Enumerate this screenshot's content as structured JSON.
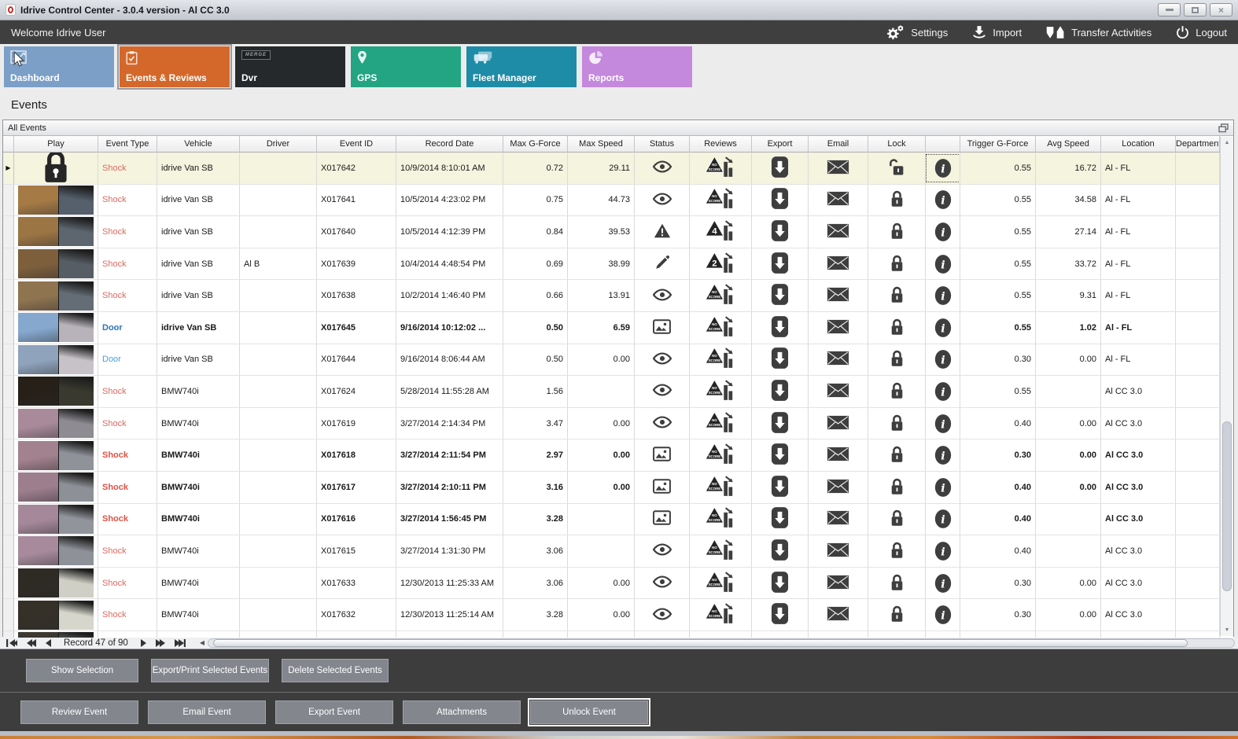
{
  "window": {
    "title": "Idrive Control Center - 3.0.4 version - Al CC 3.0",
    "controls": [
      "minimize",
      "maximize",
      "close"
    ]
  },
  "menubar": {
    "welcome": "Welcome Idrive User",
    "items": [
      {
        "label": "Settings",
        "icon": "gears-icon"
      },
      {
        "label": "Import",
        "icon": "import-arrow-icon"
      },
      {
        "label": "Transfer Activities",
        "icon": "transfer-arrows-icon"
      },
      {
        "label": "Logout",
        "icon": "power-icon"
      }
    ]
  },
  "tabs": [
    {
      "label": "Dashboard",
      "icon": "dashboard-chart-icon",
      "color": "#7b9fc7",
      "active": false
    },
    {
      "label": "Events & Reviews",
      "icon": "clipboard-check-icon",
      "color": "#d4682b",
      "active": true
    },
    {
      "label": "Dvr",
      "icon": "merge-logo-icon",
      "color": "#26292b",
      "active": false
    },
    {
      "label": "GPS",
      "icon": "map-pin-icon",
      "color": "#23a483",
      "active": false
    },
    {
      "label": "Fleet Manager",
      "icon": "trucks-icon",
      "color": "#1e8ca6",
      "active": false
    },
    {
      "label": "Reports",
      "icon": "pie-chart-icon",
      "color": "#c488dd",
      "active": false
    }
  ],
  "page": {
    "title": "Events"
  },
  "panel": {
    "title": "All Events"
  },
  "table": {
    "columns": [
      "",
      "Play",
      "Event Type",
      "Vehicle",
      "Driver",
      "Event ID",
      "Record Date",
      "Max G-Force",
      "Max Speed",
      "Status",
      "Reviews",
      "Export",
      "Email",
      "Lock",
      "",
      "Trigger G-Force",
      "Avg Speed",
      "Location",
      "Department"
    ],
    "rows": [
      {
        "play": "lock",
        "type": "Shock",
        "style": "shock",
        "vehicle": "idrive Van SB",
        "driver": "",
        "id": "X017642",
        "date": "10/9/2014 8:10:01 AM",
        "max_g": "0.72",
        "max_speed": "29.11",
        "status": "eye",
        "review": "NO SCORE",
        "lock": "unlocked",
        "trigger_g": "0.55",
        "avg_speed": "16.72",
        "location": "Al - FL",
        "department": "",
        "bold": false,
        "selected": true,
        "info_focus": true,
        "thumb": []
      },
      {
        "play": "thumb",
        "type": "Shock",
        "style": "shock",
        "vehicle": "idrive Van SB",
        "driver": "",
        "id": "X017641",
        "date": "10/5/2014 4:23:02 PM",
        "max_g": "0.75",
        "max_speed": "44.73",
        "status": "eye",
        "review": "NO SCORE",
        "lock": "locked",
        "trigger_g": "0.55",
        "avg_speed": "34.58",
        "location": "Al - FL",
        "department": "",
        "bold": false,
        "selected": false,
        "info_focus": false,
        "thumb": [
          "#a57a45",
          "#55606c"
        ]
      },
      {
        "play": "thumb",
        "type": "Shock",
        "style": "shock",
        "vehicle": "idrive Van SB",
        "driver": "",
        "id": "X017640",
        "date": "10/5/2014 4:12:39 PM",
        "max_g": "0.84",
        "max_speed": "39.53",
        "status": "warning",
        "review": "4",
        "lock": "locked",
        "trigger_g": "0.55",
        "avg_speed": "27.14",
        "location": "Al - FL",
        "department": "",
        "bold": false,
        "selected": false,
        "info_focus": false,
        "thumb": [
          "#9c7544",
          "#5d666f"
        ]
      },
      {
        "play": "thumb",
        "type": "Shock",
        "style": "shock",
        "vehicle": "idrive Van SB",
        "driver": "Al B",
        "id": "X017639",
        "date": "10/4/2014 4:48:54 PM",
        "max_g": "0.69",
        "max_speed": "38.99",
        "status": "pencil",
        "review": "2",
        "lock": "locked",
        "trigger_g": "0.55",
        "avg_speed": "33.72",
        "location": "Al - FL",
        "department": "",
        "bold": false,
        "selected": false,
        "info_focus": false,
        "thumb": [
          "#7d5f3c",
          "#565d64"
        ]
      },
      {
        "play": "thumb",
        "type": "Shock",
        "style": "shock",
        "vehicle": "idrive Van SB",
        "driver": "",
        "id": "X017638",
        "date": "10/2/2014 1:46:40 PM",
        "max_g": "0.66",
        "max_speed": "13.91",
        "status": "eye",
        "review": "NO SCORE",
        "lock": "locked",
        "trigger_g": "0.55",
        "avg_speed": "9.31",
        "location": "Al - FL",
        "department": "",
        "bold": false,
        "selected": false,
        "info_focus": false,
        "thumb": [
          "#8f7450",
          "#646d76"
        ]
      },
      {
        "play": "thumb",
        "type": "Door",
        "style": "door",
        "vehicle": "idrive Van SB",
        "driver": "",
        "id": "X017645",
        "date": "9/16/2014 10:12:02 ...",
        "max_g": "0.50",
        "max_speed": "6.59",
        "status": "picture",
        "review": "NO SCORE",
        "lock": "locked",
        "trigger_g": "0.55",
        "avg_speed": "1.02",
        "location": "Al - FL",
        "department": "",
        "bold": true,
        "selected": false,
        "info_focus": false,
        "thumb": [
          "#86a8cf",
          "#b8b2ba"
        ]
      },
      {
        "play": "thumb",
        "type": "Door",
        "style": "door",
        "vehicle": "idrive Van SB",
        "driver": "",
        "id": "X017644",
        "date": "9/16/2014 8:06:44 AM",
        "max_g": "0.50",
        "max_speed": "0.00",
        "status": "eye",
        "review": "NO SCORE",
        "lock": "locked",
        "trigger_g": "0.30",
        "avg_speed": "0.00",
        "location": "Al - FL",
        "department": "",
        "bold": false,
        "selected": false,
        "info_focus": false,
        "thumb": [
          "#8fa3bd",
          "#c6c2c8"
        ]
      },
      {
        "play": "thumb",
        "type": "Shock",
        "style": "shock",
        "vehicle": "BMW740i",
        "driver": "",
        "id": "X017624",
        "date": "5/28/2014 11:55:28 AM",
        "max_g": "1.56",
        "max_speed": "",
        "status": "eye",
        "review": "NO SCORE",
        "lock": "locked",
        "trigger_g": "0.55",
        "avg_speed": "",
        "location": "Al CC 3.0",
        "department": "",
        "bold": false,
        "selected": false,
        "info_focus": false,
        "thumb": [
          "#262018",
          "#39392f"
        ]
      },
      {
        "play": "thumb",
        "type": "Shock",
        "style": "shock",
        "vehicle": "BMW740i",
        "driver": "",
        "id": "X017619",
        "date": "3/27/2014 2:14:34 PM",
        "max_g": "3.47",
        "max_speed": "0.00",
        "status": "eye",
        "review": "NO SCORE",
        "lock": "locked",
        "trigger_g": "0.40",
        "avg_speed": "0.00",
        "location": "Al CC 3.0",
        "department": "",
        "bold": false,
        "selected": false,
        "info_focus": false,
        "thumb": [
          "#a98a9a",
          "#8e8c92"
        ]
      },
      {
        "play": "thumb",
        "type": "Shock",
        "style": "shock",
        "vehicle": "BMW740i",
        "driver": "",
        "id": "X017618",
        "date": "3/27/2014 2:11:54 PM",
        "max_g": "2.97",
        "max_speed": "0.00",
        "status": "picture",
        "review": "NO SCORE",
        "lock": "locked",
        "trigger_g": "0.30",
        "avg_speed": "0.00",
        "location": "Al CC 3.0",
        "department": "",
        "bold": true,
        "selected": false,
        "info_focus": false,
        "thumb": [
          "#a3828f",
          "#90929a"
        ]
      },
      {
        "play": "thumb",
        "type": "Shock",
        "style": "shock",
        "vehicle": "BMW740i",
        "driver": "",
        "id": "X017617",
        "date": "3/27/2014 2:10:11 PM",
        "max_g": "3.16",
        "max_speed": "0.00",
        "status": "picture",
        "review": "NO SCORE",
        "lock": "locked",
        "trigger_g": "0.40",
        "avg_speed": "0.00",
        "location": "Al CC 3.0",
        "department": "",
        "bold": true,
        "selected": false,
        "info_focus": false,
        "thumb": [
          "#9c7e8d",
          "#8d9097"
        ]
      },
      {
        "play": "thumb",
        "type": "Shock",
        "style": "shock",
        "vehicle": "BMW740i",
        "driver": "",
        "id": "X017616",
        "date": "3/27/2014 1:56:45 PM",
        "max_g": "3.28",
        "max_speed": "",
        "status": "picture",
        "review": "NO SCORE",
        "lock": "locked",
        "trigger_g": "0.40",
        "avg_speed": "",
        "location": "Al CC 3.0",
        "department": "",
        "bold": true,
        "selected": false,
        "info_focus": false,
        "thumb": [
          "#a5889a",
          "#92949c"
        ]
      },
      {
        "play": "thumb",
        "type": "Shock",
        "style": "shock",
        "vehicle": "BMW740i",
        "driver": "",
        "id": "X017615",
        "date": "3/27/2014 1:31:30 PM",
        "max_g": "3.06",
        "max_speed": "",
        "status": "eye",
        "review": "NO SCORE",
        "lock": "locked",
        "trigger_g": "0.40",
        "avg_speed": "",
        "location": "Al CC 3.0",
        "department": "",
        "bold": false,
        "selected": false,
        "info_focus": false,
        "thumb": [
          "#a78b9d",
          "#8f9199"
        ]
      },
      {
        "play": "thumb",
        "type": "Shock",
        "style": "shock",
        "vehicle": "BMW740i",
        "driver": "",
        "id": "X017633",
        "date": "12/30/2013 11:25:33 AM",
        "max_g": "3.06",
        "max_speed": "0.00",
        "status": "eye",
        "review": "NO SCORE",
        "lock": "locked",
        "trigger_g": "0.30",
        "avg_speed": "0.00",
        "location": "Al CC 3.0",
        "department": "",
        "bold": false,
        "selected": false,
        "info_focus": false,
        "thumb": [
          "#2e2a24",
          "#cfcfc5"
        ]
      },
      {
        "play": "thumb",
        "type": "Shock",
        "style": "shock",
        "vehicle": "BMW740i",
        "driver": "",
        "id": "X017632",
        "date": "12/30/2013 11:25:14 AM",
        "max_g": "3.28",
        "max_speed": "0.00",
        "status": "eye",
        "review": "NO SCORE",
        "lock": "locked",
        "trigger_g": "0.30",
        "avg_speed": "0.00",
        "location": "Al CC 3.0",
        "department": "",
        "bold": false,
        "selected": false,
        "info_focus": false,
        "thumb": [
          "#353028",
          "#d6d6cc"
        ]
      }
    ]
  },
  "record_nav": {
    "label": "Record 47 of 90"
  },
  "selection_actions": [
    "Show Selection",
    "Export/Print Selected Events",
    "Delete Selected  Events"
  ],
  "event_actions": [
    "Review Event",
    "Email Event",
    "Export Event",
    "Attachments",
    "Unlock Event"
  ],
  "colors": {
    "accent_orange": "#d4682b",
    "selected_row": "#f4f4df",
    "shock": "#e0695f",
    "door": "#4aa0dd",
    "dark_bar": "#3d3d3d"
  }
}
